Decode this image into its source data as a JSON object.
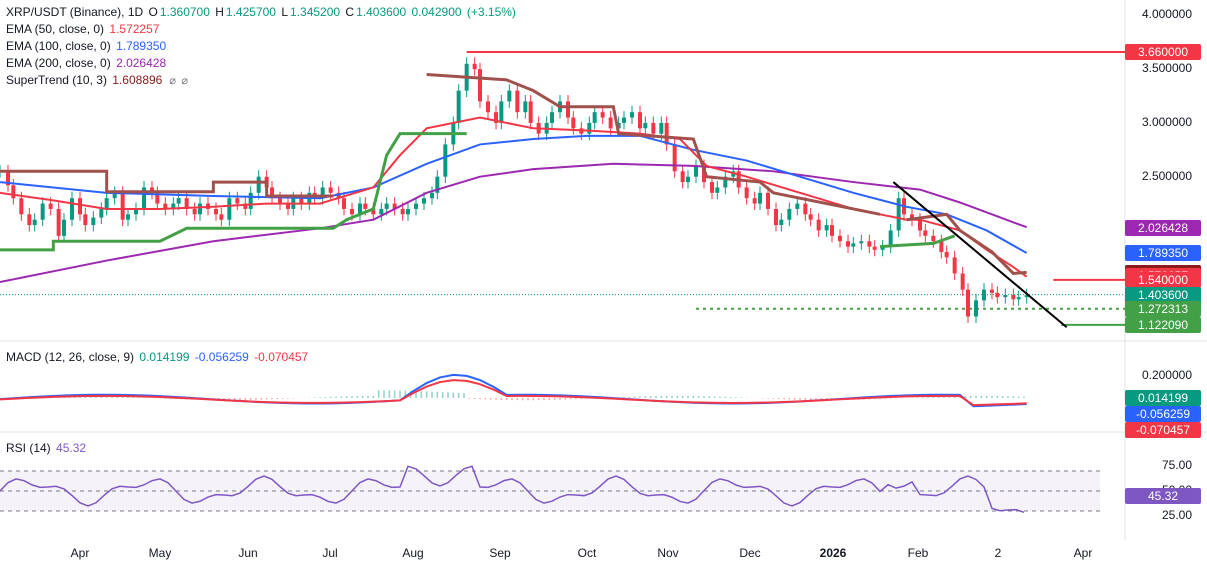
{
  "chart_data": [
    {
      "type": "candlestick",
      "title": "XRP/USDT (Binance), 1D",
      "ohlc": {
        "o_label": "O",
        "o": "1.360700",
        "h_label": "H",
        "h": "1.425700",
        "l_label": "L",
        "l": "1.345200",
        "c_label": "C",
        "c": "1.403600",
        "chg": "0.042900",
        "chg_pct": "(+3.15%)"
      },
      "indicators": [
        {
          "name": "EMA (50, close, 0)",
          "value": "1.572257",
          "color": "#f23645"
        },
        {
          "name": "EMA (100, close, 0)",
          "value": "1.789350",
          "color": "#2962ff"
        },
        {
          "name": "EMA (200, close, 0)",
          "value": "2.026428",
          "color": "#9c27b0"
        },
        {
          "name": "SuperTrend (10, 3)",
          "value": "1.608896",
          "color": "#8b1a1a"
        }
      ],
      "y_ticks": [
        "4.000000",
        "3.500000",
        "3.000000",
        "2.500000"
      ],
      "ylim": [
        1.0,
        4.05
      ],
      "price_pills": [
        {
          "v": 3.66,
          "text": "3.660000",
          "bg": "#f23645",
          "fg": "#ffffff"
        },
        {
          "v": 2.026428,
          "text": "2.026428",
          "bg": "#9c27b0",
          "fg": "#ffffff"
        },
        {
          "v": 1.78935,
          "text": "1.789350",
          "bg": "#2962ff",
          "fg": "#ffffff"
        },
        {
          "v": 1.608896,
          "text": "1.608896",
          "bg": "#8b1a1a",
          "fg": "#ffffff"
        },
        {
          "v": 1.572257,
          "text": "1.572257",
          "bg": "#f23645",
          "fg": "#ffffff"
        },
        {
          "v": 1.54,
          "text": "1.540000",
          "bg": "#f23645",
          "fg": "#ffffff"
        },
        {
          "v": 1.4036,
          "text": "1.403600",
          "bg": "#089981",
          "fg": "#ffffff"
        },
        {
          "v": 1.272313,
          "text": "1.272313",
          "bg": "#43a047",
          "fg": "#ffffff"
        },
        {
          "v": 1.12209,
          "text": "1.122090",
          "bg": "#43a047",
          "fg": "#ffffff"
        }
      ],
      "levels": [
        {
          "v": 3.66,
          "color": "#f23645",
          "style": "solid"
        },
        {
          "v": 1.54,
          "color": "#f23645",
          "style": "solid"
        },
        {
          "v": 1.272313,
          "color": "#43a047",
          "style": "dotted"
        },
        {
          "v": 1.12209,
          "color": "#43a047",
          "style": "solid"
        }
      ],
      "ema50": [
        [
          0,
          2.35
        ],
        [
          20,
          2.28
        ],
        [
          40,
          2.2
        ],
        [
          60,
          2.2
        ],
        [
          80,
          2.22
        ],
        [
          100,
          2.25
        ],
        [
          120,
          2.25
        ],
        [
          140,
          2.4
        ],
        [
          150,
          2.7
        ],
        [
          160,
          2.95
        ],
        [
          180,
          3.05
        ],
        [
          200,
          2.95
        ],
        [
          220,
          2.93
        ],
        [
          240,
          2.9
        ],
        [
          255,
          2.85
        ],
        [
          265,
          2.6
        ],
        [
          280,
          2.5
        ],
        [
          300,
          2.35
        ],
        [
          320,
          2.2
        ],
        [
          340,
          2.1
        ],
        [
          345,
          2.1
        ],
        [
          360,
          2.0
        ],
        [
          370,
          1.82
        ],
        [
          380,
          1.66
        ],
        [
          385,
          1.57
        ]
      ],
      "ema100": [
        [
          0,
          2.45
        ],
        [
          40,
          2.35
        ],
        [
          80,
          2.32
        ],
        [
          120,
          2.3
        ],
        [
          140,
          2.4
        ],
        [
          160,
          2.62
        ],
        [
          180,
          2.8
        ],
        [
          200,
          2.85
        ],
        [
          220,
          2.88
        ],
        [
          240,
          2.88
        ],
        [
          260,
          2.75
        ],
        [
          280,
          2.65
        ],
        [
          300,
          2.5
        ],
        [
          320,
          2.35
        ],
        [
          340,
          2.22
        ],
        [
          355,
          2.15
        ],
        [
          370,
          2.0
        ],
        [
          385,
          1.79
        ]
      ],
      "ema200": [
        [
          0,
          1.52
        ],
        [
          40,
          1.72
        ],
        [
          80,
          1.9
        ],
        [
          120,
          2.02
        ],
        [
          140,
          2.1
        ],
        [
          160,
          2.35
        ],
        [
          180,
          2.5
        ],
        [
          200,
          2.57
        ],
        [
          230,
          2.62
        ],
        [
          260,
          2.6
        ],
        [
          290,
          2.55
        ],
        [
          320,
          2.45
        ],
        [
          345,
          2.38
        ],
        [
          360,
          2.26
        ],
        [
          385,
          2.03
        ]
      ],
      "supertrend": [
        {
          "dir": "down",
          "pts": [
            [
              0,
              2.55
            ],
            [
              40,
              2.55
            ],
            [
              40,
              2.36
            ],
            [
              80,
              2.36
            ],
            [
              80,
              2.45
            ],
            [
              100,
              2.45
            ],
            [
              100,
              2.32
            ],
            [
              125,
              2.32
            ]
          ]
        },
        {
          "dir": "up",
          "pts": [
            [
              0,
              1.82
            ],
            [
              20,
              1.82
            ],
            [
              20,
              1.9
            ],
            [
              60,
              1.9
            ],
            [
              70,
              2.02
            ],
            [
              125,
              2.02
            ],
            [
              130,
              2.1
            ],
            [
              140,
              2.2
            ],
            [
              145,
              2.7
            ],
            [
              150,
              2.9
            ],
            [
              175,
              2.9
            ]
          ]
        },
        {
          "dir": "down",
          "pts": [
            [
              160,
              3.45
            ],
            [
              190,
              3.4
            ],
            [
              200,
              3.3
            ],
            [
              210,
              3.15
            ],
            [
              230,
              3.15
            ],
            [
              232,
              2.9
            ],
            [
              260,
              2.85
            ],
            [
              265,
              2.5
            ],
            [
              285,
              2.45
            ],
            [
              290,
              2.35
            ],
            [
              320,
              2.2
            ],
            [
              330,
              2.15
            ]
          ]
        },
        {
          "dir": "up",
          "pts": [
            [
              330,
              1.85
            ],
            [
              350,
              1.88
            ],
            [
              358,
              1.95
            ]
          ]
        },
        {
          "dir": "down",
          "pts": [
            [
              340,
              2.1
            ],
            [
              355,
              2.15
            ],
            [
              360,
              2.0
            ],
            [
              372,
              1.8
            ],
            [
              380,
              1.6
            ],
            [
              385,
              1.61
            ]
          ]
        }
      ],
      "trendline": [
        [
          335,
          2.45
        ],
        [
          400,
          1.1
        ]
      ],
      "closes": [
        2.55,
        2.42,
        2.3,
        2.15,
        2.05,
        2.1,
        2.25,
        2.2,
        1.95,
        2.1,
        2.3,
        2.15,
        2.05,
        2.12,
        2.2,
        2.3,
        2.35,
        2.1,
        2.15,
        2.2,
        2.4,
        2.35,
        2.25,
        2.2,
        2.25,
        2.3,
        2.2,
        2.15,
        2.25,
        2.2,
        2.15,
        2.1,
        2.3,
        2.25,
        2.2,
        2.35,
        2.5,
        2.4,
        2.3,
        2.25,
        2.2,
        2.3,
        2.25,
        2.35,
        2.3,
        2.4,
        2.35,
        2.3,
        2.2,
        2.15,
        2.25,
        2.2,
        2.15,
        2.2,
        2.25,
        2.2,
        2.15,
        2.2,
        2.25,
        2.3,
        2.35,
        2.5,
        2.8,
        3.0,
        3.3,
        3.55,
        3.5,
        3.2,
        3.1,
        3.0,
        3.2,
        3.3,
        3.1,
        3.2,
        3.0,
        2.9,
        3.0,
        3.1,
        3.2,
        3.05,
        2.95,
        2.9,
        3.0,
        3.1,
        3.05,
        2.95,
        3.0,
        3.05,
        3.1,
        2.95,
        3.0,
        2.9,
        3.0,
        2.8,
        2.55,
        2.45,
        2.5,
        2.6,
        2.45,
        2.35,
        2.4,
        2.5,
        2.55,
        2.4,
        2.3,
        2.25,
        2.35,
        2.2,
        2.05,
        2.1,
        2.2,
        2.25,
        2.15,
        2.1,
        2.0,
        2.05,
        1.95,
        1.9,
        1.85,
        1.88,
        1.9,
        1.85,
        1.82,
        1.85,
        2.0,
        2.3,
        2.15,
        2.1,
        2.0,
        1.95,
        1.9,
        1.8,
        1.75,
        1.6,
        1.45,
        1.2,
        1.35,
        1.45,
        1.42,
        1.38,
        1.4,
        1.36,
        1.38,
        1.4
      ],
      "macd_legend": {
        "name": "MACD (12, 26, close, 9)",
        "v1": "0.014199",
        "v2": "-0.056259",
        "v3": "-0.070457"
      },
      "macd_ticks": [
        "0.200000"
      ],
      "macd_pills": [
        {
          "text": "0.014199",
          "bg": "#089981"
        },
        {
          "text": "-0.056259",
          "bg": "#2962ff"
        },
        {
          "text": "-0.070457",
          "bg": "#f23645"
        }
      ],
      "rsi_legend": {
        "name": "RSI (14)",
        "v": "45.32"
      },
      "rsi_ticks": [
        "75.00",
        "50.00",
        "25.00"
      ],
      "rsi_pill": {
        "text": "45.32",
        "bg": "#7e57c2"
      },
      "x_labels": [
        {
          "t": "Apr",
          "bold": false
        },
        {
          "t": "May",
          "bold": false
        },
        {
          "t": "Jun",
          "bold": false
        },
        {
          "t": "Jul",
          "bold": false
        },
        {
          "t": "Aug",
          "bold": false
        },
        {
          "t": "Sep",
          "bold": false
        },
        {
          "t": "Oct",
          "bold": false
        },
        {
          "t": "Nov",
          "bold": false
        },
        {
          "t": "Dec",
          "bold": false
        },
        {
          "t": "2026",
          "bold": true
        },
        {
          "t": "Feb",
          "bold": false
        },
        {
          "t": "2",
          "bold": false
        },
        {
          "t": "Apr",
          "bold": false
        }
      ]
    }
  ]
}
